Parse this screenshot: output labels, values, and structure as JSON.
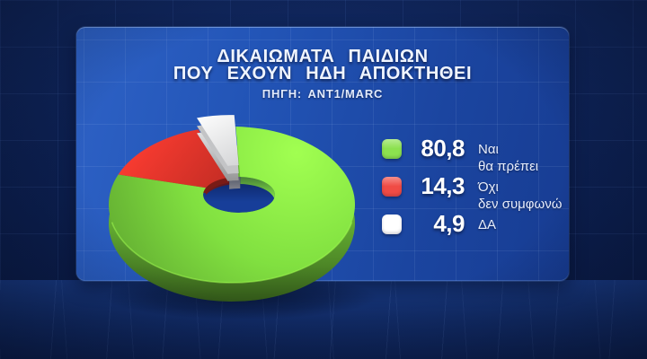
{
  "panel": {
    "title_line1": "ΔΙΚΑΙΩΜΑΤΑ ΠΑΙΔΙΩΝ",
    "title_line2": "ΠΟΥ ΕΧΟΥΝ ΗΔΗ ΑΠΟΚΤΗΘΕΙ",
    "source": "ΠΗΓΗ: ANT1/MARC"
  },
  "chart_data": {
    "type": "pie",
    "donut": true,
    "title": "ΔΙΚΑΙΩΜΑΤΑ ΠΑΙΔΙΩΝ ΠΟΥ ΕΧΟΥΝ ΗΔΗ ΑΠΟΚΤΗΘΕΙ",
    "source": "ΠΗΓΗ: ANT1/MARC",
    "unit": "percent",
    "slices": [
      {
        "label": "Ναι θα πρέπει",
        "value": 80.8,
        "display_value": "80,8",
        "color": "#7edc3f"
      },
      {
        "label": "Όχι δεν συμφωνώ",
        "value": 14.3,
        "display_value": "14,3",
        "color": "#e8342a"
      },
      {
        "label": "ΔΑ",
        "value": 4.9,
        "display_value": "4,9",
        "color": "#f4f5f7"
      }
    ],
    "start_angle_deg": 88.2,
    "direction": "ccw",
    "angular_order": [
      2,
      1,
      0
    ],
    "exploded_index": 2,
    "legend_position": "right"
  },
  "legend": {
    "items": [
      {
        "value": "80,8",
        "label_line1": "Ναι",
        "label_line2": "θα πρέπει",
        "color": "#8ce14f"
      },
      {
        "value": "14,3",
        "label_line1": "Όχι",
        "label_line2": "δεν συμφωνώ",
        "color": "#f04b45"
      },
      {
        "value": "4,9",
        "label_line1": "ΔΑ",
        "label_line2": "",
        "color": "#ffffff"
      }
    ]
  },
  "colors": {
    "background": "#0c1f4f",
    "panel_blue": "#2053b4",
    "floor_blue": "#12306b",
    "hole_blue": "#173e99",
    "title_text": "#f0f5ff",
    "green": "#7edc3f",
    "red": "#e8342a",
    "white": "#f4f5f7"
  }
}
